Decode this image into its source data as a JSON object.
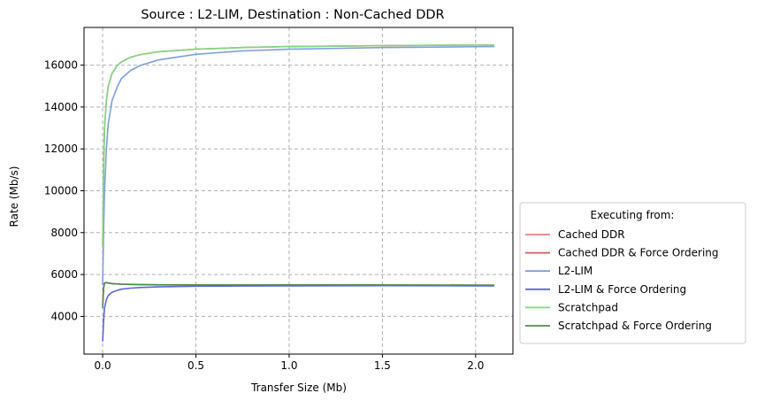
{
  "chart_data": {
    "type": "line",
    "title": "Source : L2-LIM, Destination : Non-Cached DDR",
    "xlabel": "Transfer Size (Mb)",
    "ylabel": "Rate (Mb/s)",
    "xlim": [
      -0.1,
      2.2
    ],
    "ylim": [
      2200,
      17800
    ],
    "xticks": [
      0.0,
      0.5,
      1.0,
      1.5,
      2.0
    ],
    "xtick_labels": [
      "0.0",
      "0.5",
      "1.0",
      "1.5",
      "2.0"
    ],
    "yticks": [
      4000,
      6000,
      8000,
      10000,
      12000,
      14000,
      16000
    ],
    "ytick_labels": [
      "4000",
      "6000",
      "8000",
      "10000",
      "12000",
      "14000",
      "16000"
    ],
    "grid": true,
    "legend": {
      "title": "Executing from:",
      "placement": "outside-right-bottom"
    },
    "series": [
      {
        "name": "Cached DDR",
        "color": "#e88080",
        "x": [
          0.0,
          0.005,
          0.01,
          0.02,
          0.03,
          0.05,
          0.08,
          0.1,
          0.15,
          0.2,
          0.3,
          0.5,
          0.75,
          1.0,
          1.5,
          2.0,
          2.1
        ],
        "y": [
          7400,
          11000,
          13000,
          14300,
          15000,
          15600,
          16000,
          16150,
          16380,
          16500,
          16640,
          16760,
          16840,
          16890,
          16930,
          16960,
          16960
        ]
      },
      {
        "name": "Cached DDR & Force Ordering",
        "color": "#d45a5a",
        "x": [
          0.0,
          0.005,
          0.01,
          0.02,
          0.03,
          0.05,
          0.08,
          0.1,
          0.15,
          0.2,
          0.3,
          0.5,
          0.75,
          1.0,
          1.5,
          2.0,
          2.1
        ],
        "y": [
          4500,
          5400,
          5600,
          5620,
          5600,
          5570,
          5550,
          5540,
          5530,
          5520,
          5510,
          5500,
          5500,
          5500,
          5500,
          5490,
          5490
        ]
      },
      {
        "name": "L2-LIM",
        "color": "#7b9fe0",
        "x": [
          0.0,
          0.005,
          0.01,
          0.02,
          0.03,
          0.05,
          0.08,
          0.1,
          0.15,
          0.2,
          0.3,
          0.5,
          0.75,
          1.0,
          1.5,
          2.0,
          2.1
        ],
        "y": [
          5500,
          8000,
          10000,
          12000,
          13200,
          14300,
          15000,
          15350,
          15750,
          15980,
          16250,
          16520,
          16680,
          16760,
          16840,
          16880,
          16890
        ]
      },
      {
        "name": "L2-LIM & Force Ordering",
        "color": "#5a67d8",
        "x": [
          0.0,
          0.005,
          0.01,
          0.02,
          0.03,
          0.05,
          0.08,
          0.1,
          0.15,
          0.2,
          0.3,
          0.5,
          0.75,
          1.0,
          1.5,
          2.0,
          2.1
        ],
        "y": [
          2800,
          3800,
          4400,
          4800,
          5000,
          5150,
          5250,
          5300,
          5350,
          5380,
          5410,
          5440,
          5450,
          5460,
          5470,
          5460,
          5460
        ]
      },
      {
        "name": "Scratchpad",
        "color": "#7fd67f",
        "x": [
          0.0,
          0.005,
          0.01,
          0.02,
          0.03,
          0.05,
          0.08,
          0.1,
          0.15,
          0.2,
          0.3,
          0.5,
          0.75,
          1.0,
          1.5,
          2.0,
          2.1
        ],
        "y": [
          7300,
          11000,
          13000,
          14300,
          15000,
          15600,
          16000,
          16150,
          16380,
          16500,
          16640,
          16760,
          16840,
          16890,
          16930,
          16960,
          16960
        ]
      },
      {
        "name": "Scratchpad & Force Ordering",
        "color": "#4a8f4a",
        "x": [
          0.0,
          0.005,
          0.01,
          0.02,
          0.03,
          0.05,
          0.08,
          0.1,
          0.15,
          0.2,
          0.3,
          0.5,
          0.75,
          1.0,
          1.5,
          2.0,
          2.1
        ],
        "y": [
          4400,
          5350,
          5580,
          5610,
          5590,
          5565,
          5545,
          5535,
          5525,
          5515,
          5505,
          5500,
          5500,
          5500,
          5500,
          5490,
          5490
        ]
      }
    ]
  }
}
